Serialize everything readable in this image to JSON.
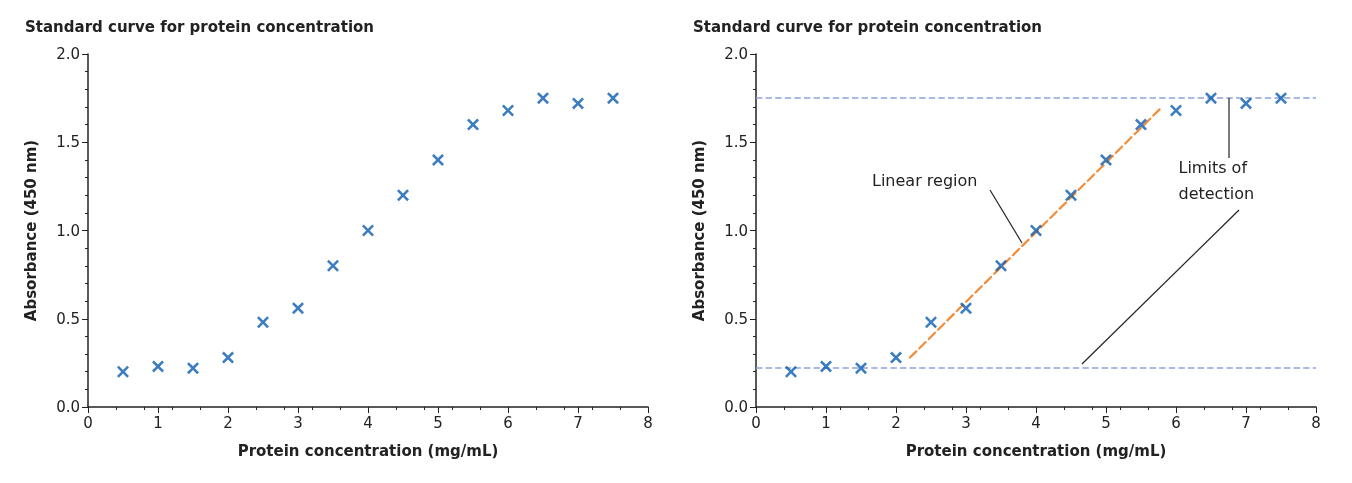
{
  "chart_data": [
    {
      "type": "scatter",
      "title": "Standard curve for protein concentration",
      "xlabel": "Protein concentration (mg/mL)",
      "ylabel": "Absorbance (450 nm)",
      "color": "#0a5cb0",
      "marker": "cross",
      "grid": false,
      "x": [
        0.5,
        1,
        1.5,
        2,
        2.5,
        3,
        3.5,
        4,
        4.5,
        5,
        5.5,
        6,
        6.5,
        7,
        7.5
      ],
      "values": [
        0.2,
        0.23,
        0.22,
        0.28,
        0.48,
        0.56,
        0.8,
        1.0,
        1.2,
        1.4,
        1.6,
        1.68,
        1.75,
        1.72,
        1.75
      ],
      "xlim": [
        0,
        8
      ],
      "xticks": [
        0,
        1,
        2,
        3,
        4,
        5,
        6,
        7,
        8
      ],
      "ylim": [
        0,
        2
      ],
      "yticks": [
        {
          "value": 0,
          "label": "0.0"
        },
        {
          "value": 0.5,
          "label": "0.5"
        },
        {
          "value": 1,
          "label": "1.0"
        },
        {
          "value": 1.5,
          "label": "1.5"
        },
        {
          "value": 2,
          "label": "2.0"
        }
      ]
    },
    {
      "type": "scatter",
      "title": "Standard curve for protein concentration",
      "xlabel": "Protein concentration (mg/mL)",
      "ylabel": "Absorbance (450 nm)",
      "grid": false,
      "series": [
        {
          "type": "scatter",
          "color": "#0a5cb0",
          "marker": "cross",
          "x": [
            0.5,
            1,
            1.5,
            2,
            2.5,
            3,
            3.5,
            4,
            4.5,
            5,
            5.5,
            6,
            6.5,
            7,
            7.5
          ],
          "values": [
            0.2,
            0.23,
            0.22,
            0.28,
            0.48,
            0.56,
            0.8,
            1.0,
            1.2,
            1.4,
            1.6,
            1.68,
            1.75,
            1.72,
            1.75
          ]
        },
        {
          "type": "line",
          "color": "#f28c38",
          "line_style": "dashed",
          "marker": "none",
          "x": [
            2.2,
            5.8
          ],
          "values": [
            0.28,
            1.7
          ]
        }
      ],
      "ref_lines": [
        {
          "axis": "y",
          "value": 1.75,
          "color": "#8ea3d8",
          "line_style": "dashed"
        },
        {
          "axis": "y",
          "value": 0.22,
          "color": "#8ea3d8",
          "line_style": "dashed"
        }
      ],
      "annotations": [
        {
          "text": "Linear region",
          "x": 3.8,
          "y": 0.93
        },
        {
          "text": "Limits of detection",
          "x": 6.75,
          "y": 1.75
        }
      ],
      "xlim": [
        0,
        8
      ],
      "xticks": [
        0,
        1,
        2,
        3,
        4,
        5,
        6,
        7,
        8
      ],
      "ylim": [
        0,
        2
      ],
      "yticks": [
        {
          "value": 0,
          "label": "0.0"
        },
        {
          "value": 0.5,
          "label": "0.5"
        },
        {
          "value": 1,
          "label": "1.0"
        },
        {
          "value": 1.5,
          "label": "1.5"
        },
        {
          "value": 2,
          "label": "2.0"
        }
      ]
    }
  ]
}
